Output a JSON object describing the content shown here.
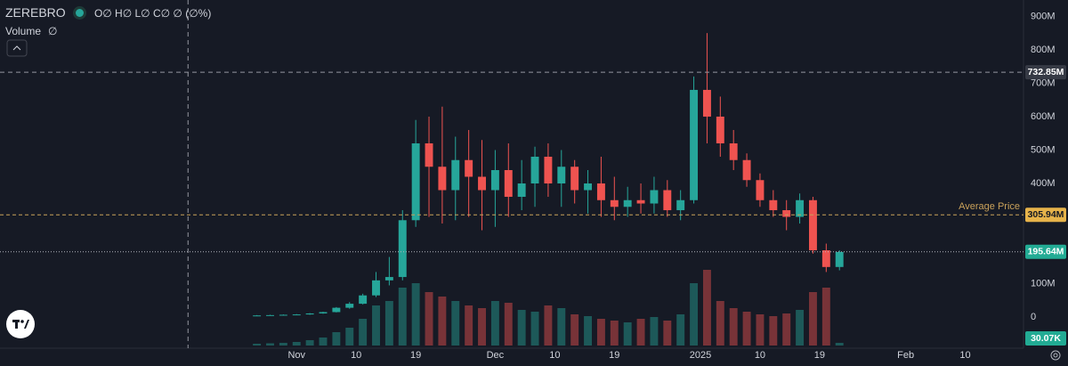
{
  "header": {
    "symbol": "ZEREBRO",
    "ohlc": "O∅ H∅ L∅ C∅ ∅ (∅%)",
    "volume_label": "Volume",
    "volume_value": "∅"
  },
  "chart_data": {
    "type": "candlestick",
    "x": [
      -6,
      -4,
      -2,
      0,
      2,
      4,
      6,
      8,
      10,
      12,
      14,
      16,
      18,
      20,
      22,
      24,
      26,
      28,
      30,
      32,
      34,
      36,
      38,
      40,
      42,
      44,
      46,
      48,
      50,
      52,
      54,
      56,
      58,
      60,
      62,
      64,
      66,
      68,
      70,
      72,
      74,
      76,
      78,
      80,
      82
    ],
    "open": [
      5,
      5,
      6,
      7,
      8,
      11,
      15,
      28,
      40,
      65,
      110,
      120,
      290,
      520,
      450,
      380,
      470,
      420,
      380,
      440,
      360,
      400,
      480,
      400,
      450,
      380,
      400,
      350,
      330,
      350,
      340,
      380,
      320,
      350,
      680,
      600,
      520,
      470,
      410,
      350,
      320,
      300,
      350,
      200,
      150
    ],
    "high": [
      6,
      7,
      8,
      9,
      12,
      16,
      30,
      45,
      70,
      135,
      180,
      320,
      590,
      600,
      630,
      540,
      560,
      530,
      500,
      520,
      470,
      510,
      520,
      500,
      470,
      440,
      480,
      420,
      390,
      400,
      420,
      410,
      380,
      720,
      850,
      660,
      560,
      490,
      430,
      380,
      350,
      370,
      360,
      220,
      200
    ],
    "low": [
      4,
      5,
      5,
      6,
      7,
      10,
      14,
      25,
      38,
      60,
      95,
      110,
      270,
      300,
      280,
      290,
      300,
      260,
      270,
      300,
      320,
      330,
      360,
      330,
      340,
      310,
      300,
      290,
      300,
      310,
      310,
      300,
      290,
      340,
      520,
      480,
      440,
      390,
      330,
      300,
      260,
      280,
      190,
      135,
      140
    ],
    "close": [
      5,
      6,
      7,
      8,
      11,
      15,
      28,
      40,
      65,
      110,
      120,
      290,
      520,
      450,
      380,
      470,
      420,
      380,
      440,
      360,
      400,
      480,
      400,
      450,
      380,
      400,
      350,
      330,
      350,
      340,
      380,
      320,
      350,
      680,
      600,
      520,
      470,
      410,
      350,
      320,
      300,
      350,
      200,
      150,
      195
    ],
    "up_color": "#26a69a",
    "down_color": "#ef5350",
    "volume": {
      "values": [
        20,
        25,
        30,
        40,
        60,
        90,
        150,
        200,
        300,
        450,
        500,
        650,
        700,
        600,
        550,
        500,
        450,
        420,
        500,
        480,
        400,
        380,
        450,
        420,
        350,
        330,
        300,
        280,
        260,
        300,
        320,
        280,
        350,
        700,
        850,
        500,
        420,
        380,
        350,
        330,
        360,
        400,
        600,
        650,
        30.07
      ],
      "vlim": [
        0,
        1000
      ],
      "last": {
        "value": 30.07,
        "label": "30.07K"
      }
    },
    "xlim": [
      -44.8,
      109.8
    ],
    "xticks": [
      {
        "value": 0,
        "label": "Nov"
      },
      {
        "value": 9,
        "label": "10"
      },
      {
        "value": 18,
        "label": "19"
      },
      {
        "value": 30,
        "label": "Dec"
      },
      {
        "value": 39,
        "label": "10"
      },
      {
        "value": 48,
        "label": "19"
      },
      {
        "value": 61,
        "label": "2025"
      },
      {
        "value": 70,
        "label": "10"
      },
      {
        "value": 79,
        "label": "19"
      },
      {
        "value": 92,
        "label": "Feb"
      },
      {
        "value": 101,
        "label": "10"
      }
    ],
    "ylim": [
      -93,
      949
    ],
    "yticks": [
      0,
      {
        "value": 100,
        "label": "100M"
      },
      {
        "value": 400,
        "label": "400M"
      },
      {
        "value": 500,
        "label": "500M"
      },
      {
        "value": 600,
        "label": "600M"
      },
      {
        "value": 700,
        "label": "700M"
      },
      {
        "value": 800,
        "label": "800M"
      },
      {
        "value": 900,
        "label": "900M"
      }
    ],
    "crosshair_x": -16.4,
    "crosshair_y": {
      "value": 732.85,
      "label": "732.85M"
    },
    "average": {
      "text": "Average Price",
      "value": 305.94,
      "label": "305.94M"
    },
    "last_price": {
      "value": 195.64,
      "label": "195.64M"
    }
  }
}
